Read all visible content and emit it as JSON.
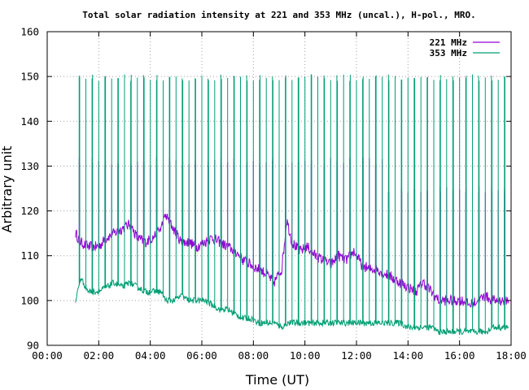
{
  "chart_data": {
    "type": "line",
    "title": "Total solar radiation intensity at 221 and 353 MHz (uncal.), H-pol., MRO.",
    "xlabel": "Time (UT)",
    "ylabel": "Arbitrary unit",
    "xlim": [
      0,
      18
    ],
    "ylim": [
      90,
      160
    ],
    "x_unit": "hours UT",
    "x_tick_labels": [
      "00:00",
      "02:00",
      "04:00",
      "06:00",
      "08:00",
      "10:00",
      "12:00",
      "14:00",
      "16:00",
      "18:00"
    ],
    "x_ticks": [
      0,
      2,
      4,
      6,
      8,
      10,
      12,
      14,
      16,
      18
    ],
    "y_ticks": [
      90,
      100,
      110,
      120,
      130,
      140,
      150,
      160
    ],
    "grid": true,
    "legend_position": "top-right",
    "spike_interval_minutes": 15,
    "spike_start_hour": 1.25,
    "spike_end_hour": 17.75,
    "series": [
      {
        "name": "221 MHz",
        "color": "#9400d3",
        "x": [
          1.1,
          1.3,
          1.6,
          2.0,
          2.3,
          2.6,
          2.9,
          3.2,
          3.5,
          3.8,
          4.1,
          4.4,
          4.6,
          4.9,
          5.2,
          5.5,
          5.8,
          6.1,
          6.4,
          6.7,
          7.0,
          7.3,
          7.6,
          7.9,
          8.2,
          8.5,
          8.8,
          9.1,
          9.3,
          9.5,
          9.8,
          10.1,
          10.4,
          10.7,
          11.0,
          11.3,
          11.6,
          11.9,
          12.2,
          12.5,
          12.8,
          13.1,
          13.4,
          13.7,
          14.0,
          14.3,
          14.6,
          14.9,
          15.2,
          15.5,
          15.8,
          16.1,
          16.4,
          16.7,
          17.0,
          17.3,
          17.6,
          17.9
        ],
        "y": [
          115,
          113,
          112,
          112,
          114,
          115,
          116,
          117,
          114,
          113,
          114,
          116,
          119,
          116,
          113,
          113,
          112,
          113,
          114,
          113,
          112,
          111,
          109,
          108,
          107,
          106,
          104,
          107,
          118,
          113,
          111,
          112,
          110,
          109,
          108,
          110,
          109,
          111,
          108,
          107,
          107,
          106,
          105,
          104,
          103,
          102,
          104,
          102,
          100,
          100,
          100,
          100,
          99,
          100,
          101,
          100,
          100,
          100
        ]
      },
      {
        "name": "353 MHz",
        "color": "#009e73",
        "x": [
          1.1,
          1.3,
          1.6,
          2.0,
          2.3,
          2.6,
          2.9,
          3.2,
          3.5,
          3.8,
          4.1,
          4.4,
          4.6,
          4.9,
          5.2,
          5.5,
          5.8,
          6.1,
          6.4,
          6.7,
          7.0,
          7.3,
          7.6,
          7.9,
          8.2,
          8.5,
          8.8,
          9.1,
          9.3,
          9.5,
          9.8,
          10.1,
          10.4,
          10.7,
          11.0,
          11.3,
          11.6,
          11.9,
          12.2,
          12.5,
          12.8,
          13.1,
          13.4,
          13.7,
          14.0,
          14.3,
          14.6,
          14.9,
          15.2,
          15.5,
          15.8,
          16.1,
          16.4,
          16.7,
          17.0,
          17.3,
          17.6,
          17.9
        ],
        "y": [
          100,
          105,
          102,
          102,
          103,
          104,
          103,
          104,
          103,
          102,
          102,
          102,
          100,
          100,
          101,
          100,
          100,
          100,
          99,
          98,
          98,
          97,
          96,
          96,
          95,
          95,
          95,
          94,
          95,
          95,
          95,
          95,
          95,
          95,
          95,
          95,
          95,
          95,
          95,
          95,
          95,
          95,
          95,
          95,
          94,
          94,
          94,
          94,
          93,
          93,
          93,
          93,
          93,
          93,
          93,
          94,
          94,
          94
        ]
      }
    ]
  }
}
